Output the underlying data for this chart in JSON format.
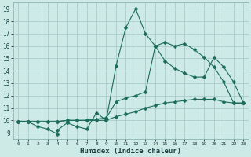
{
  "title": "",
  "xlabel": "Humidex (Indice chaleur)",
  "bg_color": "#ceeae6",
  "grid_color": "#aaccc8",
  "line_color": "#1a6b5a",
  "xlim": [
    -0.5,
    23.5
  ],
  "ylim": [
    8.5,
    19.5
  ],
  "xticks": [
    0,
    1,
    2,
    3,
    4,
    5,
    6,
    7,
    8,
    9,
    10,
    11,
    12,
    13,
    14,
    15,
    16,
    17,
    18,
    19,
    20,
    21,
    22,
    23
  ],
  "yticks": [
    9,
    10,
    11,
    12,
    13,
    14,
    15,
    16,
    17,
    18,
    19
  ],
  "line1_x": [
    0,
    1,
    2,
    3,
    4,
    4,
    5,
    6,
    7,
    8,
    9,
    10,
    11,
    12,
    13,
    14,
    15,
    16,
    17,
    18,
    19,
    20,
    21,
    22,
    23
  ],
  "line1_y": [
    9.9,
    9.9,
    9.5,
    9.3,
    8.9,
    9.2,
    9.8,
    9.5,
    9.3,
    10.6,
    10.0,
    14.4,
    17.5,
    19.0,
    17.0,
    16.0,
    16.3,
    16.0,
    16.2,
    15.7,
    15.1,
    14.3,
    13.1,
    11.4,
    11.4
  ],
  "line2_x": [
    0,
    1,
    2,
    3,
    4,
    5,
    6,
    7,
    8,
    9,
    10,
    11,
    12,
    13,
    14,
    15,
    16,
    17,
    18,
    19,
    20,
    21,
    22,
    23
  ],
  "line2_y": [
    9.9,
    9.9,
    9.9,
    9.9,
    9.9,
    10.0,
    10.0,
    10.0,
    10.0,
    10.0,
    10.3,
    10.5,
    10.7,
    11.0,
    11.2,
    11.4,
    11.5,
    11.6,
    11.7,
    11.7,
    11.7,
    11.5,
    11.4,
    11.4
  ],
  "line3_x": [
    0,
    1,
    2,
    3,
    4,
    5,
    6,
    7,
    8,
    9,
    10,
    11,
    12,
    13,
    14,
    15,
    16,
    17,
    18,
    19,
    20,
    21,
    22,
    23
  ],
  "line3_y": [
    9.9,
    9.9,
    9.9,
    9.9,
    9.9,
    10.0,
    10.0,
    10.0,
    10.1,
    10.2,
    11.5,
    11.8,
    12.0,
    12.3,
    16.0,
    14.8,
    14.2,
    13.8,
    13.5,
    13.5,
    15.1,
    14.3,
    13.1,
    11.4
  ],
  "markersize": 2.5
}
